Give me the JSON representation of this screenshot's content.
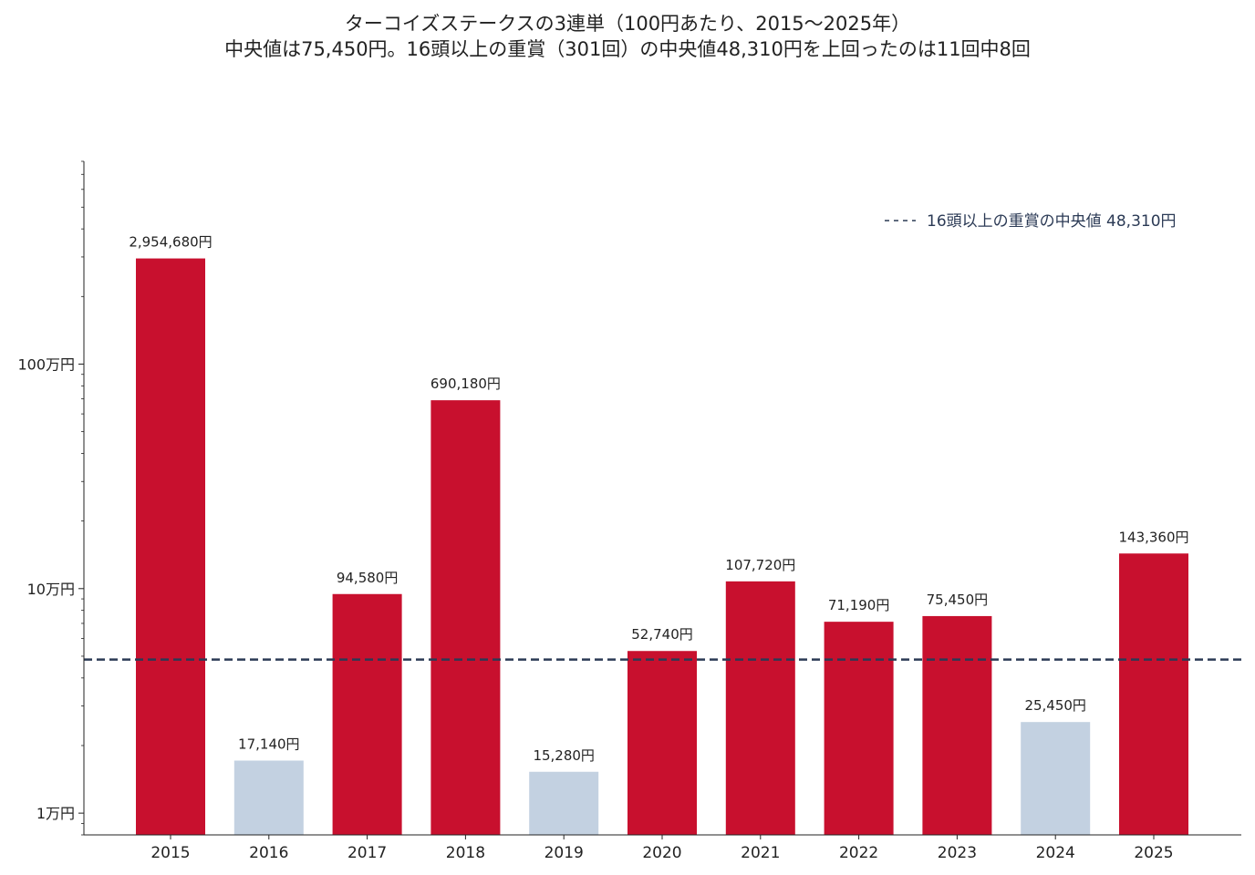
{
  "title": {
    "line1": "ターコイズステークスの3連単（100円あたり、2015〜2025年）",
    "line2": "中央値は75,450円。16頭以上の重賞（301回）の中央値48,310円を上回ったのは11回中8回"
  },
  "colors": {
    "above": "#c8102e",
    "below": "#c3d1e1",
    "reference": "#2b3a55",
    "axis": "#222222"
  },
  "chart_data": {
    "type": "bar",
    "categories": [
      "2015",
      "2016",
      "2017",
      "2018",
      "2019",
      "2020",
      "2021",
      "2022",
      "2023",
      "2024",
      "2025"
    ],
    "values": [
      2954680,
      17140,
      94580,
      690180,
      15280,
      52740,
      107720,
      71190,
      75450,
      25450,
      143360
    ],
    "value_labels": [
      "2,954,680円",
      "17,140円",
      "94,580円",
      "690,180円",
      "15,280円",
      "52,740円",
      "107,720円",
      "71,190円",
      "75,450円",
      "25,450円",
      "143,360円"
    ],
    "yscale": "log",
    "ylim": [
      8000,
      8000000
    ],
    "yticks": [
      10000,
      100000,
      1000000
    ],
    "ytick_labels": [
      "1万円",
      "10万円",
      "100万円"
    ],
    "reference_line": {
      "value": 48310,
      "label": "16頭以上の重賞の中央値 48,310円",
      "style": "dashed"
    },
    "legend_position": "top-right",
    "grid": false
  }
}
